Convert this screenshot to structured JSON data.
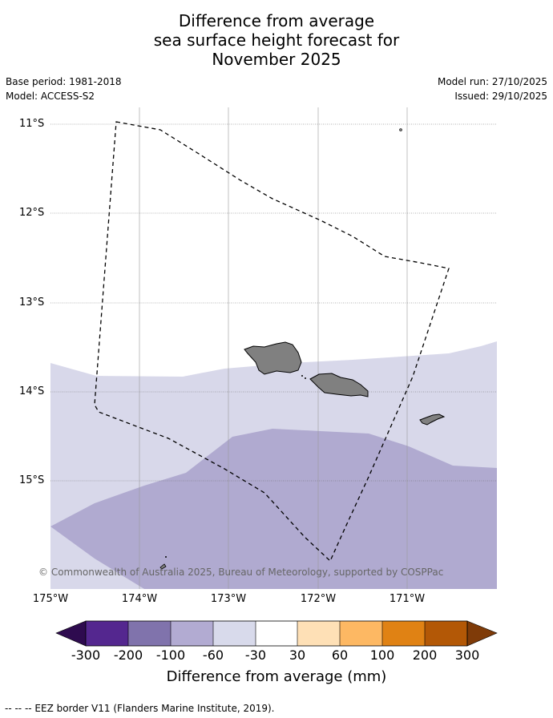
{
  "title": {
    "line1": "Difference from average",
    "line2": "sea surface height forecast for",
    "line3": "November 2025"
  },
  "meta": {
    "base_period": "Base period: 1981-2018",
    "model": "Model: ACCESS-S2",
    "model_run": "Model run: 27/10/2025",
    "issued": "Issued: 29/10/2025"
  },
  "map": {
    "lat_labels": [
      "11°S",
      "12°S",
      "13°S",
      "14°S",
      "15°S"
    ],
    "lon_labels": [
      "175°W",
      "174°W",
      "173°W",
      "172°W",
      "171°W"
    ],
    "copyright": "© Commonwealth of Australia 2025, Bureau of Meteorology, supported by COSPPac",
    "colors": {
      "land": "#808080",
      "band_minus30_minus60": "#d8d8ea",
      "band_minus60_minus100": "#b0aad0",
      "eez_border": "#000000"
    }
  },
  "colorbar": {
    "title": "Difference from average (mm)",
    "tick_labels": [
      "-300",
      "-200",
      "-100",
      "-60",
      "-30",
      "30",
      "60",
      "100",
      "200",
      "300"
    ],
    "colors": [
      "#2e0b4f",
      "#54278f",
      "#8073ac",
      "#b2abd2",
      "#d8daeb",
      "#ffffff",
      "#fee0b6",
      "#fdb863",
      "#e08214",
      "#b35806",
      "#7f3b08"
    ]
  },
  "footer": "--  --  -- EEZ border V11 (Flanders Marine Institute, 2019)."
}
